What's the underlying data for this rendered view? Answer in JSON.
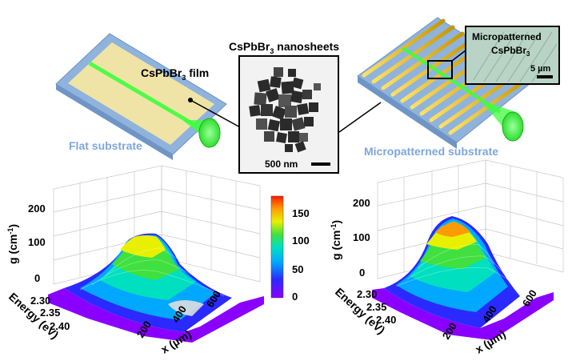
{
  "top": {
    "flat": {
      "film_label_main": "CsPbBr",
      "film_label_sub": "3",
      "film_label_tail": " film",
      "substrate_label": "Flat substrate"
    },
    "nanosheets": {
      "title_main": "CsPbBr",
      "title_sub": "3",
      "title_tail": " nanosheets",
      "scale_label": "500 nm"
    },
    "patterned": {
      "inset_line1": "Micropatterned",
      "inset_line2_main": "CsPbBr",
      "inset_line2_sub": "3",
      "inset_scale": "5 µm",
      "substrate_label": "Micropatterned substrate"
    }
  },
  "colorbar": {
    "ticks": [
      "150",
      "100",
      "50",
      "0"
    ],
    "min": 0,
    "max": 170
  },
  "plots": {
    "left": {
      "z_label": "g (cm",
      "z_label_sup": "-1",
      "z_label_end": ")",
      "z_ticks": [
        "200",
        "100",
        "0"
      ],
      "y_label": "Energy (eV)",
      "y_ticks": [
        "2.30",
        "2.35",
        "2.40"
      ],
      "x_label": "x (µm)",
      "x_ticks": [
        "200",
        "400",
        "600"
      ]
    },
    "right": {
      "z_label": "g (cm",
      "z_label_sup": "-1",
      "z_label_end": ")",
      "z_ticks": [
        "200",
        "100",
        "0"
      ],
      "y_label": "Energy (eV)",
      "y_ticks": [
        "2.30",
        "2.35",
        "2.40"
      ],
      "x_label": "x (µm)",
      "x_ticks": [
        "200",
        "400",
        "600"
      ]
    }
  },
  "colors": {
    "substrate": "#8fb3dc",
    "film": "#efe4a6",
    "laser": "#3dff3d",
    "stripe": "#e0b000",
    "label_blue": "#7ea6dd"
  }
}
